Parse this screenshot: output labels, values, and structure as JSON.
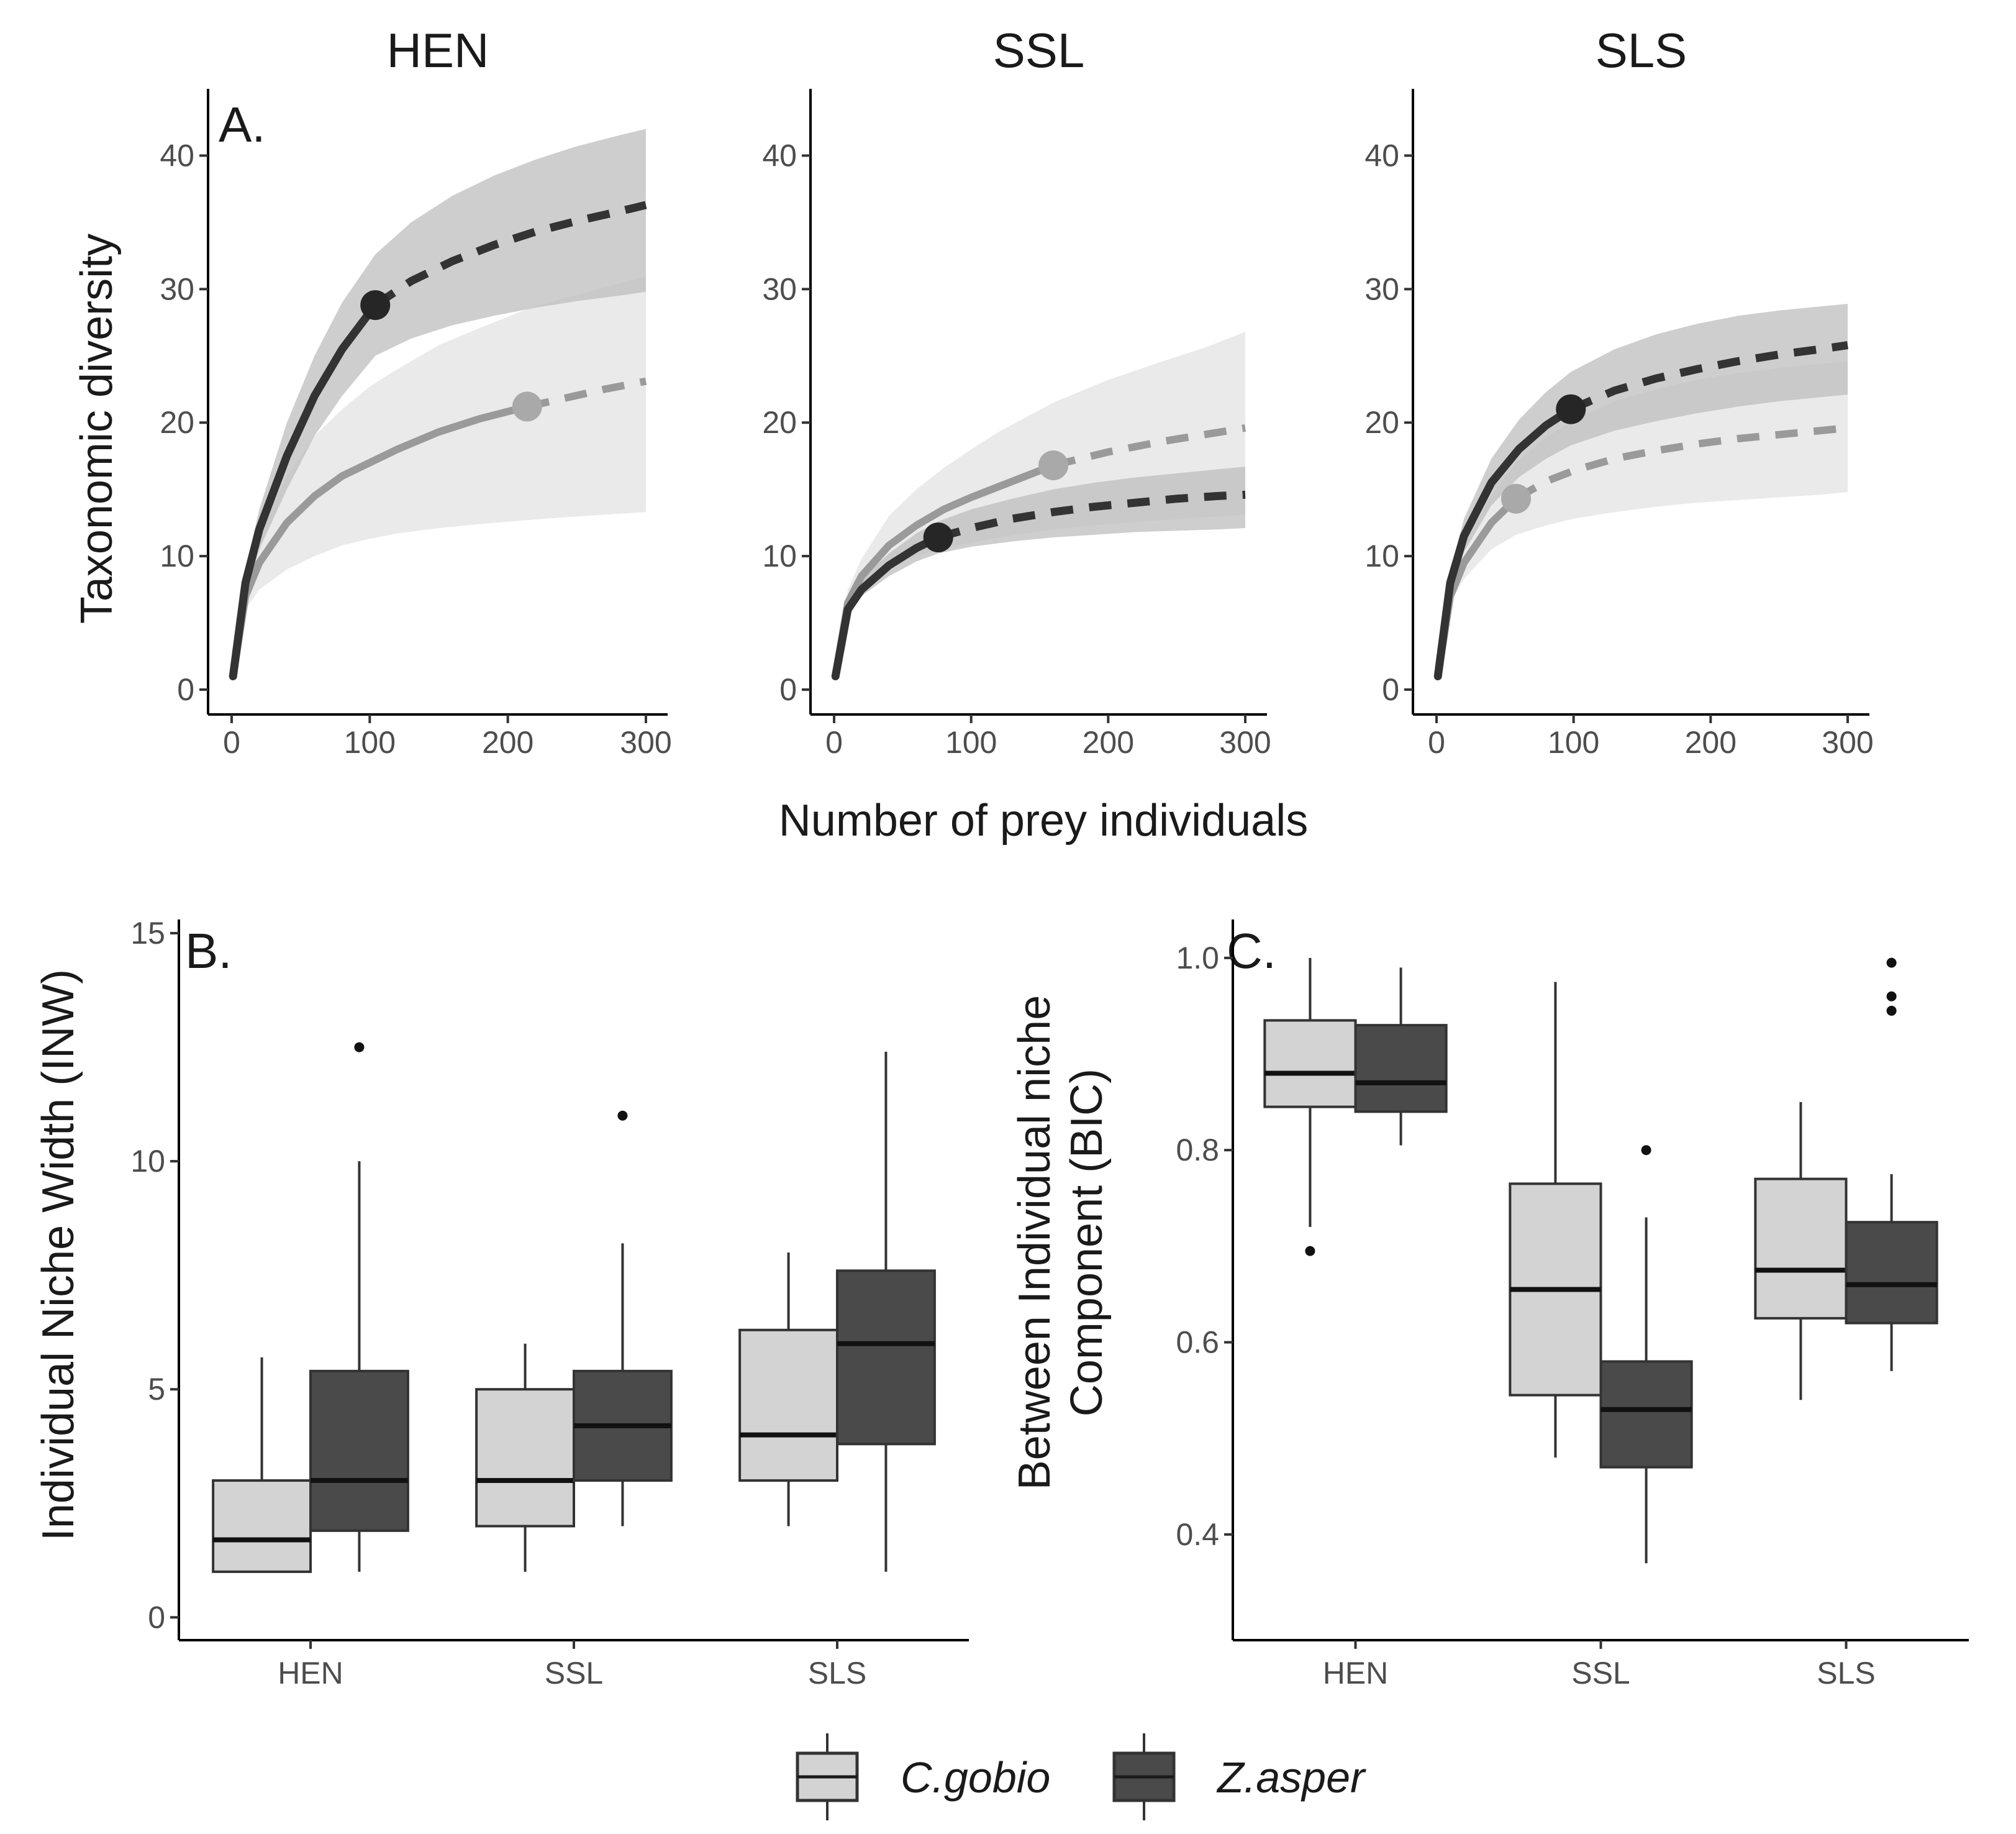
{
  "colors": {
    "cgobio_line": "#9a9a9a",
    "cgobio_band": "#e6e6e6",
    "cgobio_point": "#a9a9a9",
    "cgobio_box": "#d3d3d3",
    "zasper_line": "#333333",
    "zasper_band": "#bdbdbd",
    "zasper_point": "#262626",
    "zasper_box": "#4a4a4a",
    "axis": "#000000",
    "text": "#1a1a1a"
  },
  "legend": {
    "items": [
      {
        "label": "C.gobio",
        "swatch": "cgobio_box"
      },
      {
        "label": "Z.asper",
        "swatch": "zasper_box"
      }
    ]
  },
  "chart_data": [
    {
      "type": "line",
      "panel_label": "A.",
      "xlabel": "Number of prey individuals",
      "ylabel": "Taxonomic diversity",
      "xlim": [
        0,
        300
      ],
      "ylim": [
        0,
        45
      ],
      "xticks": [
        0,
        100,
        200,
        300
      ],
      "yticks": [
        0,
        10,
        20,
        30,
        40
      ],
      "facets": [
        {
          "title": "HEN",
          "series": [
            {
              "name": "C.gobio",
              "x": [
                1,
                10,
                20,
                40,
                60,
                80,
                100,
                120,
                150,
                180,
                214,
                240,
                270,
                300
              ],
              "y": [
                1,
                7,
                9.5,
                12.5,
                14.5,
                16,
                17,
                18,
                19.3,
                20.3,
                21.2,
                21.8,
                22.5,
                23.1
              ],
              "lower": [
                1,
                6,
                7.5,
                9,
                10,
                10.8,
                11.3,
                11.7,
                12.1,
                12.4,
                12.7,
                12.9,
                13.1,
                13.3
              ],
              "upper": [
                1,
                8,
                11.5,
                16,
                19,
                21,
                22.7,
                24,
                25.8,
                27.1,
                28.5,
                29.3,
                30.1,
                31
              ],
              "observed_n": 214,
              "observed_value": 21.2
            },
            {
              "name": "Z.asper",
              "x": [
                1,
                10,
                20,
                40,
                60,
                80,
                104,
                130,
                160,
                190,
                220,
                250,
                280,
                300
              ],
              "y": [
                1,
                8,
                12,
                17.5,
                22,
                25.5,
                28.8,
                30.6,
                32.1,
                33.3,
                34.3,
                35.1,
                35.8,
                36.3
              ],
              "lower": [
                1,
                7,
                10.5,
                15,
                19,
                22,
                25,
                26.3,
                27.3,
                28,
                28.6,
                29.1,
                29.5,
                29.8
              ],
              "upper": [
                1,
                9,
                13.5,
                20,
                25,
                29,
                32.6,
                35,
                37,
                38.5,
                39.7,
                40.7,
                41.5,
                42
              ],
              "observed_n": 104,
              "observed_value": 28.8
            }
          ]
        },
        {
          "title": "SSL",
          "series": [
            {
              "name": "C.gobio",
              "x": [
                1,
                10,
                20,
                40,
                60,
                80,
                100,
                120,
                160,
                200,
                240,
                270,
                300
              ],
              "y": [
                1,
                6.5,
                8.5,
                10.8,
                12.3,
                13.5,
                14.4,
                15.2,
                16.8,
                17.8,
                18.6,
                19.1,
                19.6
              ],
              "lower": [
                1,
                6,
                7.5,
                9,
                10,
                10.6,
                11,
                11.4,
                12,
                12.4,
                12.7,
                12.9,
                13.1
              ],
              "upper": [
                1,
                7.5,
                9.8,
                13,
                15,
                16.6,
                18,
                19.3,
                21.5,
                23.2,
                24.6,
                25.6,
                26.8
              ],
              "observed_n": 160,
              "observed_value": 16.8
            },
            {
              "name": "Z.asper",
              "x": [
                1,
                10,
                20,
                40,
                60,
                76,
                100,
                130,
                160,
                190,
                220,
                250,
                280,
                300
              ],
              "y": [
                1,
                6,
                7.5,
                9.3,
                10.6,
                11.4,
                12.1,
                12.8,
                13.3,
                13.7,
                14,
                14.3,
                14.5,
                14.6
              ],
              "lower": [
                1,
                5.5,
                7,
                8.5,
                9.6,
                10.2,
                10.7,
                11.1,
                11.4,
                11.6,
                11.8,
                11.9,
                12,
                12.1
              ],
              "upper": [
                1,
                6.5,
                8.3,
                10.2,
                11.7,
                12.6,
                13.5,
                14.3,
                15,
                15.5,
                15.9,
                16.2,
                16.5,
                16.7
              ],
              "observed_n": 76,
              "observed_value": 11.4
            }
          ]
        },
        {
          "title": "SLS",
          "series": [
            {
              "name": "C.gobio",
              "x": [
                1,
                10,
                20,
                40,
                58,
                80,
                100,
                130,
                160,
                190,
                220,
                250,
                280,
                300
              ],
              "y": [
                1,
                7,
                9.5,
                12.5,
                14.3,
                15.6,
                16.4,
                17.3,
                17.9,
                18.4,
                18.8,
                19.1,
                19.4,
                19.6
              ],
              "lower": [
                1,
                6.5,
                8.3,
                10.5,
                11.6,
                12.3,
                12.8,
                13.3,
                13.7,
                14,
                14.2,
                14.4,
                14.6,
                14.8
              ],
              "upper": [
                1,
                7.8,
                10.8,
                14.5,
                17,
                18.9,
                20.2,
                21.6,
                22.5,
                23.2,
                23.7,
                24.1,
                24.4,
                24.6
              ],
              "observed_n": 58,
              "observed_value": 14.3
            },
            {
              "name": "Z.asper",
              "x": [
                1,
                10,
                20,
                40,
                60,
                80,
                98,
                130,
                160,
                190,
                220,
                250,
                280,
                300
              ],
              "y": [
                1,
                8,
                11.5,
                15.5,
                18,
                19.8,
                21,
                22.4,
                23.3,
                24,
                24.6,
                25.1,
                25.5,
                25.8
              ],
              "lower": [
                1,
                7.3,
                10.3,
                13.8,
                15.9,
                17.3,
                18.3,
                19.4,
                20.1,
                20.7,
                21.2,
                21.6,
                21.9,
                22.1
              ],
              "upper": [
                1,
                8.8,
                12.8,
                17.3,
                20.2,
                22.3,
                23.8,
                25.5,
                26.6,
                27.4,
                28,
                28.4,
                28.7,
                28.9
              ],
              "observed_n": 98,
              "observed_value": 21
            }
          ]
        }
      ]
    },
    {
      "type": "box",
      "panel_label": "B.",
      "xlabel": "",
      "ylabel": "Individual Niche Width (INW)",
      "categories": [
        "HEN",
        "SSL",
        "SLS"
      ],
      "ylim": [
        -0.5,
        15.3
      ],
      "yticks": [
        0,
        5,
        10,
        15
      ],
      "series": [
        {
          "name": "C.gobio",
          "boxes": [
            {
              "category": "HEN",
              "whisker_low": 1,
              "q1": 1,
              "median": 1.7,
              "q3": 3,
              "whisker_high": 5.7,
              "outliers": []
            },
            {
              "category": "SSL",
              "whisker_low": 1,
              "q1": 2,
              "median": 3,
              "q3": 5,
              "whisker_high": 6,
              "outliers": []
            },
            {
              "category": "SLS",
              "whisker_low": 2,
              "q1": 3,
              "median": 4,
              "q3": 6.3,
              "whisker_high": 8,
              "outliers": []
            }
          ]
        },
        {
          "name": "Z.asper",
          "boxes": [
            {
              "category": "HEN",
              "whisker_low": 1,
              "q1": 1.9,
              "median": 3,
              "q3": 5.4,
              "whisker_high": 10,
              "outliers": [
                12.5
              ]
            },
            {
              "category": "SSL",
              "whisker_low": 2,
              "q1": 3,
              "median": 4.2,
              "q3": 5.4,
              "whisker_high": 8.2,
              "outliers": [
                11
              ]
            },
            {
              "category": "SLS",
              "whisker_low": 1,
              "q1": 3.8,
              "median": 6,
              "q3": 7.6,
              "whisker_high": 12.4,
              "outliers": []
            }
          ]
        }
      ]
    },
    {
      "type": "box",
      "panel_label": "C.",
      "xlabel": "",
      "ylabel": "Between Individual niche Component (BIC)",
      "categories": [
        "HEN",
        "SSL",
        "SLS"
      ],
      "ylim": [
        0.29,
        1.04
      ],
      "yticks": [
        0.4,
        0.6,
        0.8,
        1.0
      ],
      "ytick_labels": [
        "0.4",
        "0.6",
        "0.8",
        "1.0"
      ],
      "series": [
        {
          "name": "C.gobio",
          "boxes": [
            {
              "category": "HEN",
              "whisker_low": 0.72,
              "q1": 0.845,
              "median": 0.88,
              "q3": 0.935,
              "whisker_high": 1.0,
              "outliers": [
                0.695
              ]
            },
            {
              "category": "SSL",
              "whisker_low": 0.48,
              "q1": 0.545,
              "median": 0.655,
              "q3": 0.765,
              "whisker_high": 0.975,
              "outliers": []
            },
            {
              "category": "SLS",
              "whisker_low": 0.54,
              "q1": 0.625,
              "median": 0.675,
              "q3": 0.77,
              "whisker_high": 0.85,
              "outliers": []
            }
          ]
        },
        {
          "name": "Z.asper",
          "boxes": [
            {
              "category": "HEN",
              "whisker_low": 0.805,
              "q1": 0.84,
              "median": 0.87,
              "q3": 0.93,
              "whisker_high": 0.99,
              "outliers": []
            },
            {
              "category": "SSL",
              "whisker_low": 0.37,
              "q1": 0.47,
              "median": 0.53,
              "q3": 0.58,
              "whisker_high": 0.73,
              "outliers": [
                0.8
              ]
            },
            {
              "category": "SLS",
              "whisker_low": 0.57,
              "q1": 0.62,
              "median": 0.66,
              "q3": 0.725,
              "whisker_high": 0.775,
              "outliers": [
                0.945,
                0.96,
                0.995
              ]
            }
          ]
        }
      ]
    }
  ]
}
